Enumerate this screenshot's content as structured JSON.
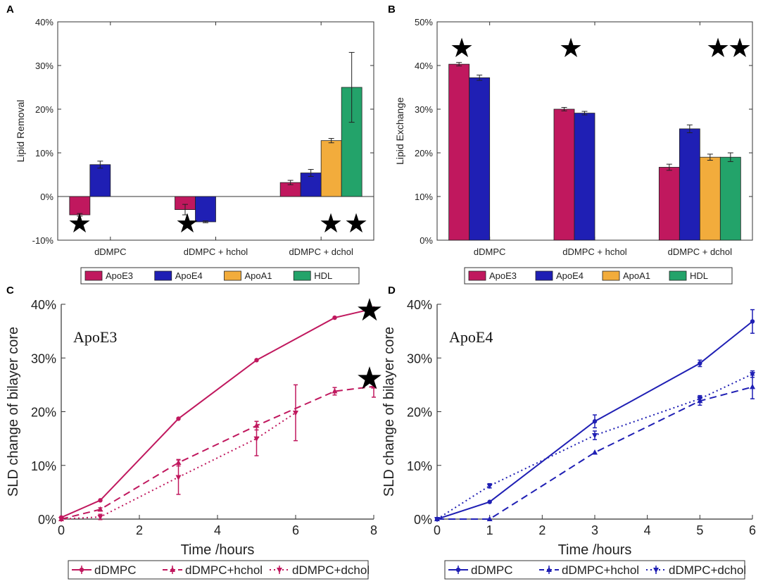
{
  "chart_data": [
    {
      "panel": "A",
      "type": "bar",
      "title": "",
      "xlabel": "",
      "ylabel": "Lipid Removal",
      "ylim": [
        -10,
        40
      ],
      "yticks": [
        "-10%",
        "0%",
        "10%",
        "20%",
        "30%",
        "40%"
      ],
      "yticks_values": [
        -10,
        0,
        10,
        20,
        30,
        40
      ],
      "categories": [
        "dDMPC",
        "dDMPC + hchol",
        "dDMPC + dchol"
      ],
      "series": [
        {
          "name": "ApoE3",
          "color": "#c0185e",
          "values": [
            -4.2,
            -3.0,
            3.2
          ],
          "errors": [
            0.3,
            1.2,
            0.5
          ]
        },
        {
          "name": "ApoE4",
          "color": "#1f1fb4",
          "values": [
            7.3,
            -5.8,
            5.4
          ],
          "errors": [
            0.8,
            0.2,
            0.8
          ]
        },
        {
          "name": "ApoA1",
          "color": "#f2ac3c",
          "values": [
            null,
            null,
            12.8
          ],
          "errors": [
            0,
            0,
            0.5
          ]
        },
        {
          "name": "HDL",
          "color": "#23a36a",
          "values": [
            null,
            null,
            25.0
          ],
          "errors": [
            0,
            0,
            8.0
          ]
        }
      ],
      "stars": [
        "★",
        "★",
        "★★"
      ],
      "legend": "bottom"
    },
    {
      "panel": "B",
      "type": "bar",
      "title": "",
      "xlabel": "",
      "ylabel": "Lipid Exchange",
      "ylim": [
        0,
        50
      ],
      "yticks": [
        "0%",
        "10%",
        "20%",
        "30%",
        "40%",
        "50%"
      ],
      "yticks_values": [
        0,
        10,
        20,
        30,
        40,
        50
      ],
      "categories": [
        "dDMPC",
        "dDMPC + hchol",
        "dDMPC + dchol"
      ],
      "series": [
        {
          "name": "ApoE3",
          "color": "#c0185e",
          "values": [
            40.3,
            30.0,
            16.7
          ],
          "errors": [
            0.4,
            0.4,
            0.7
          ]
        },
        {
          "name": "ApoE4",
          "color": "#1f1fb4",
          "values": [
            37.2,
            29.1,
            25.5
          ],
          "errors": [
            0.6,
            0.4,
            0.9
          ]
        },
        {
          "name": "ApoA1",
          "color": "#f2ac3c",
          "values": [
            null,
            null,
            19.0
          ],
          "errors": [
            0,
            0,
            0.7
          ]
        },
        {
          "name": "HDL",
          "color": "#23a36a",
          "values": [
            null,
            null,
            19.0
          ],
          "errors": [
            0,
            0,
            1.0
          ]
        }
      ],
      "stars": [
        "★",
        "★",
        "★★"
      ],
      "legend": "bottom"
    },
    {
      "panel": "C",
      "type": "line",
      "title": "ApoE3",
      "xlabel": "Time /hours",
      "ylabel": "SLD change of bilayer core",
      "xlim": [
        0,
        8
      ],
      "ylim": [
        0,
        40
      ],
      "xticks": [
        "0",
        "2",
        "4",
        "6",
        "8"
      ],
      "xticks_values": [
        0,
        2,
        4,
        6,
        8
      ],
      "yticks": [
        "0%",
        "10%",
        "20%",
        "30%",
        "40%"
      ],
      "yticks_values": [
        0,
        10,
        20,
        30,
        40
      ],
      "color": "#c0185e",
      "series": [
        {
          "name": "dDMPC",
          "style": "solid",
          "marker": "dot",
          "x": [
            0,
            1,
            3,
            5,
            7,
            8
          ],
          "y": [
            0.3,
            3.5,
            18.7,
            29.6,
            37.5,
            39.2
          ],
          "err": [
            0,
            0,
            0,
            0,
            0,
            0
          ]
        },
        {
          "name": "dDMPC+hchol",
          "style": "dashed",
          "marker": "up",
          "x": [
            0,
            1,
            3,
            5,
            7,
            8
          ],
          "y": [
            0,
            1.8,
            10.5,
            17.4,
            23.8,
            24.7
          ],
          "err": [
            0,
            0.3,
            0.6,
            0.8,
            0.7,
            2.0
          ]
        },
        {
          "name": "dDMPC+dchol",
          "style": "dotted",
          "marker": "down",
          "x": [
            0,
            1,
            3,
            5,
            6
          ],
          "y": [
            0,
            0.4,
            7.8,
            15.0,
            19.8
          ],
          "err": [
            0,
            0.5,
            3.2,
            3.2,
            5.2
          ]
        }
      ],
      "stars": [
        "★",
        "★"
      ],
      "legend": "bottom"
    },
    {
      "panel": "D",
      "type": "line",
      "title": "ApoE4",
      "xlabel": "Time /hours",
      "ylabel": "SLD change of bilayer core",
      "xlim": [
        0,
        6
      ],
      "ylim": [
        0,
        40
      ],
      "xticks": [
        "0",
        "1",
        "2",
        "3",
        "4",
        "5",
        "6"
      ],
      "xticks_values": [
        0,
        1,
        2,
        3,
        4,
        5,
        6
      ],
      "yticks": [
        "0%",
        "10%",
        "20%",
        "30%",
        "40%"
      ],
      "yticks_values": [
        0,
        10,
        20,
        30,
        40
      ],
      "color": "#1f1fb4",
      "series": [
        {
          "name": "dDMPC",
          "style": "solid",
          "marker": "dot",
          "x": [
            0,
            1,
            3,
            5,
            6
          ],
          "y": [
            0,
            3.2,
            18.2,
            29.0,
            36.8
          ],
          "err": [
            0,
            0,
            1.2,
            0.6,
            2.2
          ]
        },
        {
          "name": "dDMPC+hchol",
          "style": "dashed",
          "marker": "up",
          "x": [
            0,
            1,
            3,
            5,
            6
          ],
          "y": [
            0,
            0,
            12.4,
            22.0,
            24.6
          ],
          "err": [
            0,
            0,
            0,
            0.8,
            2.2
          ]
        },
        {
          "name": "dDMPC+dchol",
          "style": "dotted",
          "marker": "down",
          "x": [
            0,
            1,
            3,
            5,
            6
          ],
          "y": [
            0,
            6.2,
            15.6,
            22.4,
            27.0
          ],
          "err": [
            0,
            0.4,
            0.8,
            0.6,
            0.6
          ]
        }
      ],
      "stars": [],
      "legend": "bottom"
    }
  ]
}
